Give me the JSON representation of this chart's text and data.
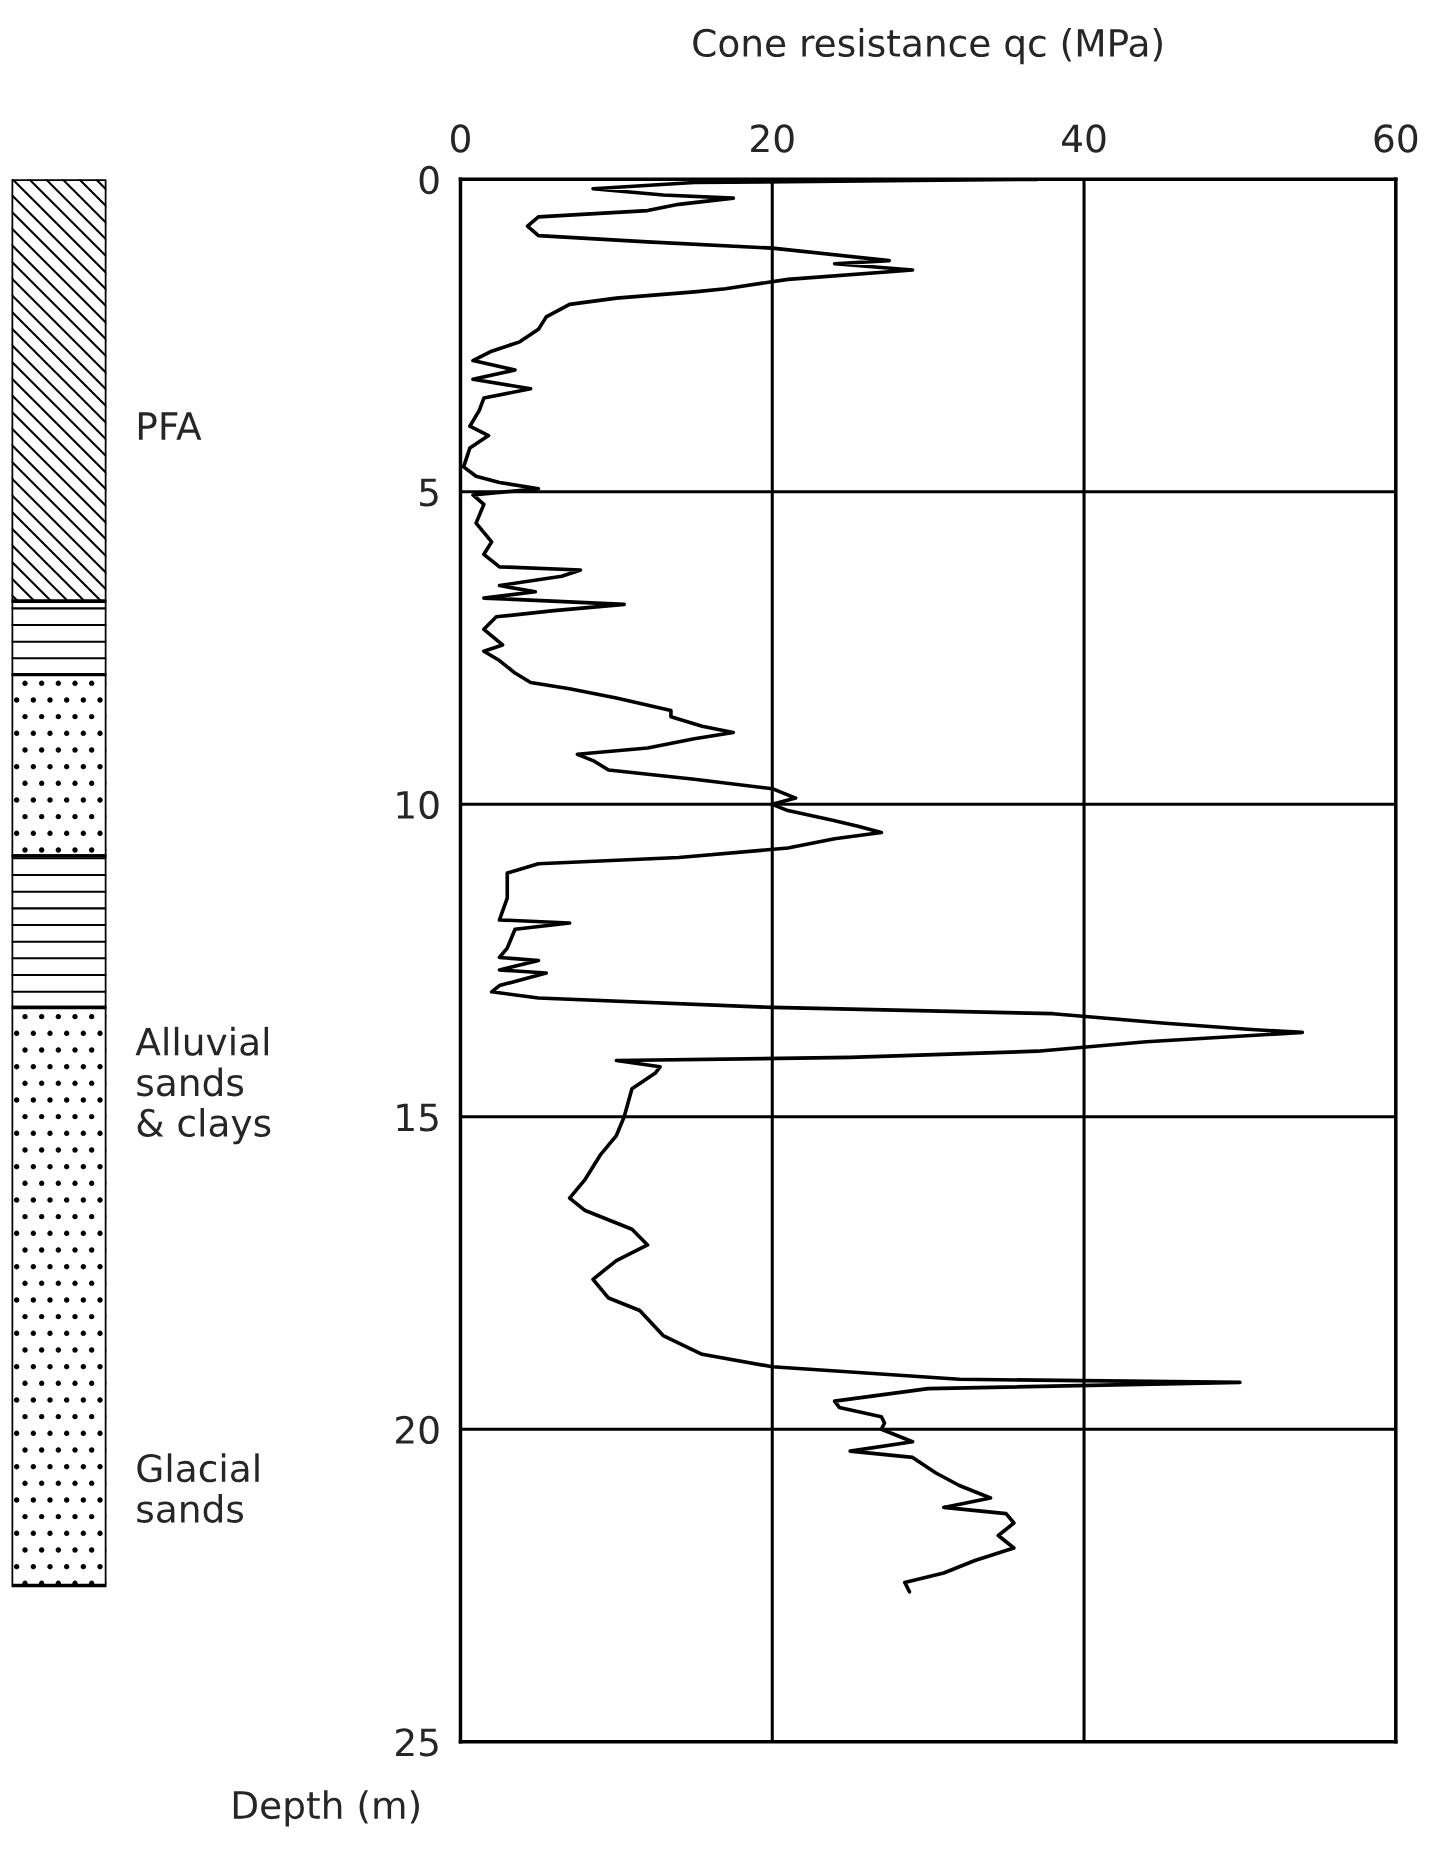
{
  "chart_data": {
    "type": "line",
    "xlabel": "Cone resistance qc (MPa)",
    "ylabel": "Depth (m)",
    "xlim": [
      0,
      60
    ],
    "xticks": [
      0,
      20,
      40,
      60
    ],
    "ylim": [
      25,
      0
    ],
    "yticks": [
      0,
      5,
      10,
      15,
      20,
      25
    ],
    "grid": true,
    "marker": "none",
    "line_style": "solid",
    "annotations": [
      "PFA",
      "Alluvial\nsands\n& clays",
      "Glacial\nsands"
    ],
    "series": [
      {
        "color": "#000000",
        "x": [
          37,
          15,
          8.5,
          13,
          17.5,
          14,
          12,
          5,
          4.3,
          5,
          12,
          20,
          27.5,
          24,
          29,
          21,
          17,
          15,
          10,
          7,
          5.5,
          5,
          3.8,
          2,
          0.8,
          3.5,
          0.8,
          4.5,
          1.5,
          1.2,
          0.6,
          1.8,
          0.6,
          0.2,
          1.0,
          2.5,
          5,
          0.8,
          1.5,
          1.0,
          2.0,
          1.5,
          2.5,
          7.7,
          6.5,
          2.5,
          4.8,
          1.5,
          10.5,
          6,
          2.3,
          1.5,
          2.7,
          1.5,
          2.5,
          3.5,
          4.5,
          7,
          10,
          13.5,
          13.5,
          15.5,
          17.5,
          15,
          12,
          7.5,
          8.5,
          9.5,
          15,
          20,
          21.5,
          20,
          21,
          23.8,
          25.5,
          27,
          24,
          21,
          14,
          5,
          3,
          3,
          2.5,
          7,
          3.5,
          3,
          2.5,
          5,
          2.5,
          5.5,
          2.5,
          2.0,
          5,
          20,
          38,
          45,
          50.5,
          54,
          44,
          37,
          25,
          10,
          12.8,
          12.5,
          11,
          10.5,
          10,
          9,
          8,
          7,
          8,
          11,
          12,
          10,
          8.5,
          9.5,
          11.5,
          13,
          15.5,
          20,
          32,
          50,
          30,
          24,
          24.3,
          27,
          27.2,
          27,
          29,
          25,
          29,
          30.5,
          32,
          34,
          31,
          35,
          35.5,
          34.5,
          35.5,
          33,
          31,
          28.5,
          28.8
        ],
        "values": [
          0.0,
          0.05,
          0.15,
          0.25,
          0.3,
          0.4,
          0.5,
          0.6,
          0.75,
          0.9,
          1.0,
          1.1,
          1.3,
          1.35,
          1.45,
          1.6,
          1.75,
          1.8,
          1.9,
          2.0,
          2.2,
          2.4,
          2.6,
          2.75,
          2.9,
          3.05,
          3.2,
          3.35,
          3.5,
          3.7,
          3.95,
          4.1,
          4.3,
          4.6,
          4.75,
          4.85,
          4.95,
          5.05,
          5.2,
          5.5,
          5.8,
          6.0,
          6.2,
          6.25,
          6.35,
          6.5,
          6.6,
          6.7,
          6.8,
          6.9,
          7.0,
          7.2,
          7.45,
          7.55,
          7.7,
          7.9,
          8.05,
          8.15,
          8.3,
          8.5,
          8.6,
          8.75,
          8.85,
          8.95,
          9.1,
          9.2,
          9.3,
          9.45,
          9.6,
          9.75,
          9.9,
          10.0,
          10.1,
          10.25,
          10.35,
          10.45,
          10.55,
          10.7,
          10.85,
          10.95,
          11.1,
          11.5,
          11.85,
          11.9,
          12.0,
          12.3,
          12.45,
          12.5,
          12.65,
          12.7,
          12.9,
          13.0,
          13.1,
          13.25,
          13.35,
          13.5,
          13.6,
          13.65,
          13.8,
          13.95,
          14.05,
          14.1,
          14.2,
          14.3,
          14.55,
          15,
          15.3,
          15.6,
          16.0,
          16.3,
          16.5,
          16.8,
          17.05,
          17.3,
          17.6,
          17.9,
          18.1,
          18.5,
          18.8,
          19.0,
          19.2,
          19.25,
          19.35,
          19.55,
          19.65,
          19.8,
          19.9,
          20.0,
          20.2,
          20.35,
          20.45,
          20.7,
          20.9,
          21.1,
          21.25,
          21.35,
          21.5,
          21.7,
          21.9,
          22.1,
          22.3,
          22.45,
          22.6
        ]
      }
    ]
  }
}
